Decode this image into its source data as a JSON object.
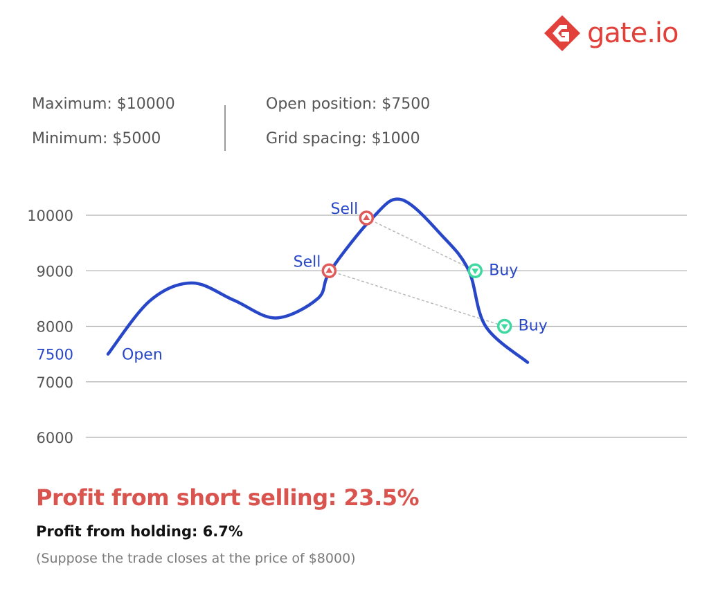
{
  "brand": {
    "name": "gate.io",
    "color": "#e2413b",
    "icon": "gate-io-logo-icon"
  },
  "params": {
    "maximum": "Maximum: $10000",
    "minimum": "Minimum: $5000",
    "open_position": "Open position: $7500",
    "grid_spacing": "Grid spacing: $1000"
  },
  "chart_data": {
    "type": "line",
    "title": "",
    "xlabel": "",
    "ylabel": "",
    "y_ticks": [
      10000,
      9000,
      8000,
      7500,
      7000,
      6000
    ],
    "highlight_tick": 7500,
    "ylim": [
      6000,
      10300
    ],
    "grid": true,
    "series": [
      {
        "color": "#2747c8",
        "x": [
          0,
          0.1,
          0.2,
          0.3,
          0.4,
          0.5,
          0.53,
          0.63,
          0.7,
          0.8,
          0.86,
          0.9,
          1.0
        ],
        "values": [
          7500,
          8460,
          8780,
          8470,
          8150,
          8500,
          9000,
          9950,
          10280,
          9600,
          9000,
          8000,
          7350
        ]
      }
    ],
    "markers": [
      {
        "label": "Sell",
        "type": "sell",
        "x": 0.527,
        "value": 9000
      },
      {
        "label": "Sell",
        "type": "sell",
        "x": 0.616,
        "value": 9950
      },
      {
        "label": "Buy",
        "type": "buy",
        "x": 0.875,
        "value": 9000
      },
      {
        "label": "Buy",
        "type": "buy",
        "x": 0.945,
        "value": 8000
      }
    ],
    "trades": [
      [
        1,
        2
      ],
      [
        0,
        3
      ]
    ],
    "annotations": [
      {
        "label": "Open",
        "x": 0,
        "value": 7500
      }
    ],
    "colors": {
      "line": "#2747c8",
      "sell": "#e05a5a",
      "buy": "#3dd9a0",
      "grid": "#b0b0b0",
      "tick": "#555555",
      "highlight_tick": "#2747c8",
      "connector": "#b8b8b8"
    }
  },
  "results": {
    "profit_short": "Profit from short selling: 23.5%",
    "profit_holding": "Profit from holding: 6.7%",
    "note": "(Suppose the trade closes at the price of $8000)"
  }
}
